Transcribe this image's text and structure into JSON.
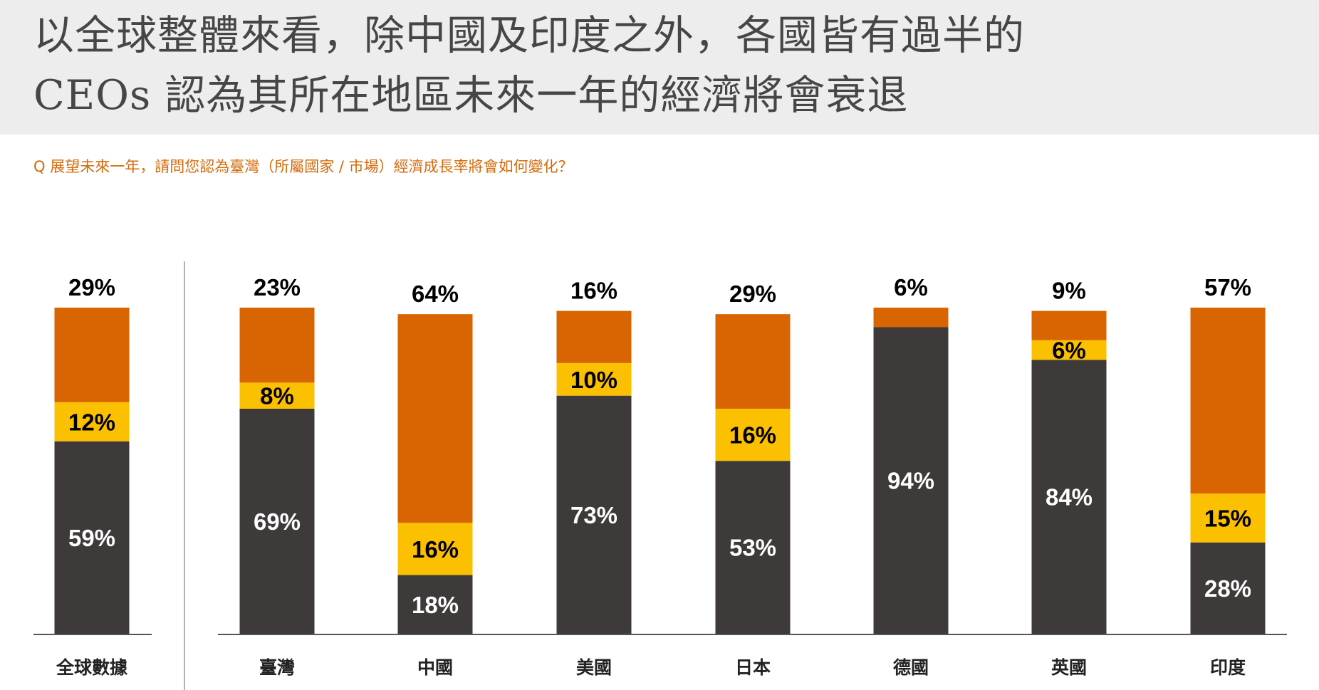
{
  "header": {
    "title_line1": "以全球整體來看，除中國及印度之外，各國皆有過半的",
    "title_line2": "CEOs 認為其所在地區未來一年的經濟將會衰退",
    "question": "Q  展望未來一年，請問您認為臺灣（所屬國家 / 市場）經濟成長率將會如何變化？"
  },
  "chart_data": {
    "type": "bar",
    "stacked": true,
    "categories": [
      "全球數據",
      "臺灣",
      "中國",
      "美國",
      "日本",
      "德國",
      "英國",
      "印度"
    ],
    "series": [
      {
        "name": "dark",
        "color": "#3d3a39",
        "values": [
          59,
          69,
          18,
          73,
          53,
          94,
          84,
          28
        ]
      },
      {
        "name": "yellow",
        "color": "#fbc000",
        "values": [
          12,
          8,
          16,
          10,
          16,
          0,
          6,
          15
        ]
      },
      {
        "name": "orange",
        "color": "#d96502",
        "values": [
          29,
          23,
          64,
          16,
          29,
          6,
          9,
          57
        ]
      }
    ],
    "ylim": [
      0,
      100
    ],
    "legend": "none",
    "grid": false
  }
}
